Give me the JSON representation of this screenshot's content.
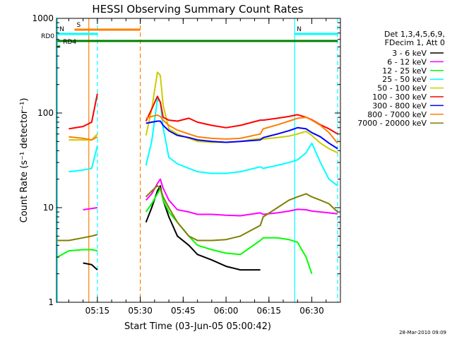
{
  "chart_data": {
    "type": "line",
    "title": "HESSI Observing Summary Count Rates",
    "xlabel": "Start Time (03-Jun-05 05:00:42)",
    "ylabel": "Count Rate (s⁻¹ detector⁻¹)",
    "yscale": "log",
    "ylim": [
      1,
      1000
    ],
    "xlim": [
      "05:00:42",
      "06:40:00"
    ],
    "grid": false,
    "yticks": [
      "1",
      "10",
      "100",
      "1000"
    ],
    "xticks": [
      "05:15",
      "05:30",
      "05:45",
      "06:00",
      "06:15",
      "06:30"
    ],
    "legend_position": "right",
    "legend_header": [
      "Det 1,3,4,5,6,9,",
      "FDecim 1, Att 0"
    ],
    "footer_date": "28-Mar-2010 09:09",
    "flags": [
      {
        "label": "S",
        "color": "#ff7f00",
        "from": "05:07",
        "to": "05:30"
      },
      {
        "label": "N",
        "color": "#00ffff",
        "from": "05:01",
        "to": "05:15"
      },
      {
        "label": "N",
        "color": "#00ffff",
        "from": "06:24",
        "to": "06:39"
      },
      {
        "label": "RD0",
        "color": "#007f00",
        "from": "05:01",
        "to": "06:39"
      },
      {
        "label": "RD4",
        "color": "#007f00",
        "from": "05:01",
        "to": "05:02"
      }
    ],
    "x": [
      "05:01",
      "05:05",
      "05:10",
      "05:13",
      "05:15",
      "05:30",
      "05:32",
      "05:34",
      "05:36",
      "05:37",
      "05:38",
      "05:40",
      "05:43",
      "05:47",
      "05:50",
      "05:55",
      "06:00",
      "06:05",
      "06:12",
      "06:13",
      "06:18",
      "06:22",
      "06:25",
      "06:28",
      "06:30",
      "06:33",
      "06:36",
      "06:39"
    ],
    "series": [
      {
        "name": "3 - 6 keV",
        "color": "#000000",
        "values": [
          null,
          null,
          2.6,
          2.5,
          2.2,
          null,
          7,
          10,
          15,
          17,
          12,
          8,
          5,
          4,
          3.2,
          2.8,
          2.4,
          2.2,
          2.2,
          null,
          null,
          null,
          null,
          null,
          null,
          null,
          null,
          null
        ]
      },
      {
        "name": "6 - 12 keV",
        "color": "#ff00ff",
        "values": [
          null,
          null,
          9.5,
          9.8,
          10,
          null,
          12,
          14,
          18,
          20,
          16,
          12,
          9.5,
          9,
          8.5,
          8.5,
          8.3,
          8.2,
          8.8,
          8.5,
          8.8,
          9.2,
          9.6,
          9.5,
          9.2,
          9,
          8.8,
          8.6
        ]
      },
      {
        "name": "12 - 25 keV",
        "color": "#00ff00",
        "values": [
          3,
          3.5,
          3.6,
          3.6,
          3.5,
          null,
          9,
          11,
          14,
          16,
          12,
          9,
          7,
          5,
          4,
          3.6,
          3.3,
          3.2,
          4.5,
          4.8,
          4.8,
          4.6,
          4.3,
          3,
          2,
          null,
          null,
          null
        ]
      },
      {
        "name": "25 - 50 keV",
        "color": "#00ffff",
        "values": [
          null,
          24,
          25,
          26,
          45,
          null,
          28,
          50,
          140,
          130,
          70,
          34,
          29,
          26,
          24,
          23,
          23,
          24,
          27,
          26,
          28,
          30,
          32,
          38,
          48,
          30,
          20,
          17
        ]
      },
      {
        "name": "50 - 100 keV",
        "color": "#cccc00",
        "values": [
          null,
          52,
          52,
          52,
          60,
          null,
          58,
          110,
          270,
          250,
          120,
          68,
          60,
          54,
          50,
          49,
          49,
          50,
          54,
          53,
          55,
          57,
          60,
          64,
          58,
          48,
          42,
          38
        ]
      },
      {
        "name": "100 - 300 keV",
        "color": "#ff0000",
        "values": [
          null,
          68,
          72,
          80,
          160,
          null,
          82,
          110,
          150,
          130,
          90,
          84,
          82,
          88,
          80,
          74,
          70,
          74,
          84,
          84,
          88,
          92,
          96,
          90,
          85,
          75,
          68,
          60
        ]
      },
      {
        "name": "300 - 800 keV",
        "color": "#0000ff",
        "values": [
          null,
          null,
          null,
          null,
          null,
          null,
          78,
          80,
          82,
          82,
          74,
          65,
          58,
          55,
          52,
          50,
          49,
          50,
          52,
          55,
          60,
          65,
          70,
          68,
          62,
          56,
          48,
          42
        ]
      },
      {
        "name": "800 - 7000 keV",
        "color": "#ff7f00",
        "values": [
          null,
          56,
          54,
          52,
          56,
          null,
          88,
          92,
          95,
          92,
          84,
          74,
          66,
          60,
          56,
          54,
          53,
          54,
          60,
          68,
          75,
          82,
          88,
          90,
          84,
          74,
          62,
          48
        ]
      },
      {
        "name": "7000 - 20000 keV",
        "color": "#7f7f00",
        "values": [
          4.5,
          4.5,
          4.8,
          5,
          5.2,
          null,
          13,
          15,
          17,
          16,
          13,
          10,
          7,
          5,
          4.5,
          4.5,
          4.6,
          5,
          6.5,
          8,
          10,
          12,
          13,
          14,
          13,
          12,
          11,
          9
        ]
      }
    ],
    "vlines": [
      {
        "time": "05:01",
        "color": "#00ffff",
        "style": "solid"
      },
      {
        "time": "05:12",
        "color": "#ff7f00",
        "style": "solid"
      },
      {
        "time": "05:15",
        "color": "#00ffff",
        "style": "dashed"
      },
      {
        "time": "05:30",
        "color": "#ff7f00",
        "style": "dashed"
      },
      {
        "time": "06:24",
        "color": "#00ffff",
        "style": "solid"
      },
      {
        "time": "06:39",
        "color": "#00ffff",
        "style": "dashed"
      }
    ]
  }
}
